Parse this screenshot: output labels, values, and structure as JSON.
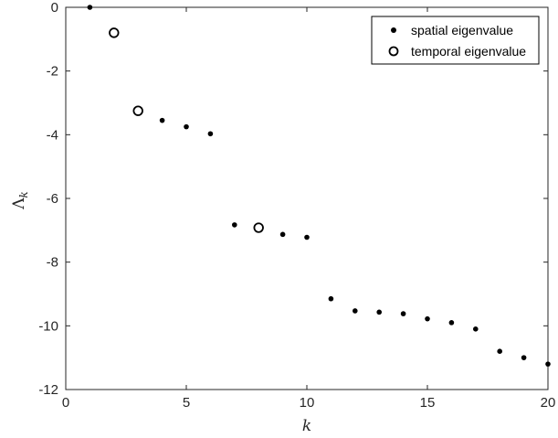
{
  "chart_data": {
    "type": "scatter",
    "xlabel": "k",
    "ylabel": "Λ",
    "ylabel_subscript": "k",
    "xlim": [
      0,
      20
    ],
    "ylim": [
      -12,
      0
    ],
    "xticks": [
      0,
      5,
      10,
      15,
      20
    ],
    "yticks": [
      0,
      -2,
      -4,
      -6,
      -8,
      -10,
      -12
    ],
    "grid": false,
    "legend_position": "top-right",
    "series": [
      {
        "name": "spatial eigenvalue",
        "marker": "filled-dot",
        "color": "#000000",
        "x": [
          1,
          4,
          5,
          6,
          7,
          9,
          10,
          11,
          12,
          13,
          14,
          15,
          16,
          17,
          18,
          19,
          20
        ],
        "y": [
          0,
          -3.55,
          -3.75,
          -3.97,
          -6.83,
          -7.13,
          -7.22,
          -9.15,
          -9.53,
          -9.57,
          -9.62,
          -9.78,
          -9.9,
          -10.1,
          -10.8,
          -11.0,
          -11.2
        ]
      },
      {
        "name": "temporal eigenvalue",
        "marker": "open-circle",
        "color": "#000000",
        "x": [
          2,
          3,
          8
        ],
        "y": [
          -0.8,
          -3.25,
          -6.92
        ]
      }
    ]
  }
}
